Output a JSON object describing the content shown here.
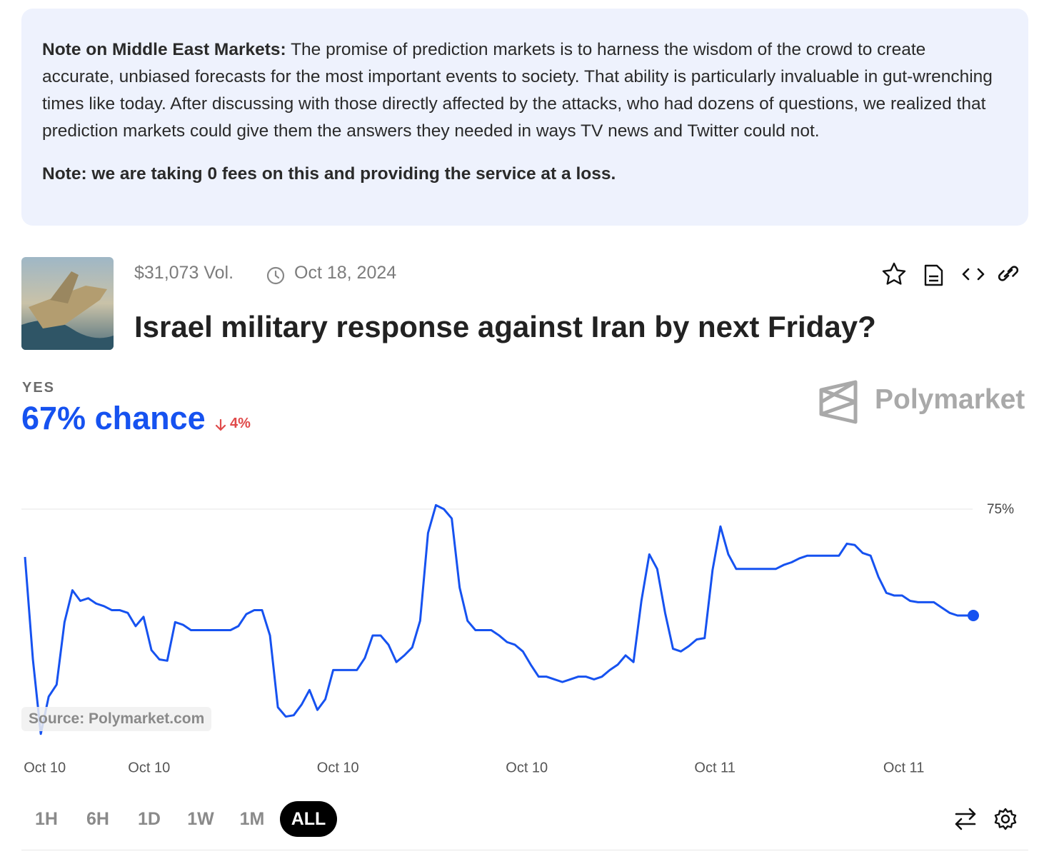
{
  "notice": {
    "heading": "Note on Middle East Markets:",
    "body": "The promise of prediction markets is to harness the wisdom of the crowd to create accurate, unbiased forecasts for the most important events to society. That ability is particularly invaluable in gut-wrenching times like today. After discussing with those directly affected by the attacks, who had dozens of questions, we realized that prediction markets could give them the answers they needed in ways TV news and Twitter could not.",
    "fee_note": "Note: we are taking 0 fees on this and providing the service at a loss."
  },
  "market": {
    "volume": "$31,073 Vol.",
    "end_date": "Oct 18, 2024",
    "title": "Israel military response against Iran by next Friday?",
    "outcome": "YES",
    "chance": "67% chance",
    "change": "4%",
    "brand": "Polymarket",
    "source": "Source: Polymarket.com"
  },
  "chart_data": {
    "type": "line",
    "color": "#1652f0",
    "grid": true,
    "x": [
      0,
      1,
      2,
      3,
      4,
      5,
      6,
      7,
      8,
      9,
      10,
      11,
      12,
      13,
      14,
      15,
      16,
      17,
      18,
      19,
      20,
      21,
      22,
      23,
      24,
      25,
      26,
      27,
      28,
      29,
      30,
      31,
      32,
      33,
      34,
      35,
      36,
      37,
      38,
      39,
      40,
      41,
      42,
      43,
      44,
      45,
      46,
      47,
      48,
      49,
      50,
      51,
      52,
      53,
      54,
      55,
      56,
      57,
      58,
      59,
      60,
      61,
      62,
      63,
      64,
      65,
      66,
      67,
      68,
      69,
      70,
      71,
      72,
      73,
      74,
      75,
      76,
      77,
      78,
      79,
      80,
      81,
      82,
      83,
      84,
      85,
      86,
      87,
      88,
      89,
      90,
      91,
      92,
      93,
      94,
      95,
      96,
      97,
      98,
      99,
      100,
      101,
      102,
      103,
      104,
      105,
      106,
      107,
      108,
      109,
      110,
      111,
      112,
      113,
      114,
      115,
      116,
      117,
      118,
      119,
      120
    ],
    "values": [
      71.4,
      63.7,
      58.1,
      60.9,
      61.8,
      66.5,
      68.9,
      68.1,
      68.3,
      67.9,
      67.7,
      67.4,
      67.4,
      67.2,
      66.2,
      66.9,
      64.4,
      63.7,
      63.6,
      66.5,
      66.3,
      65.9,
      65.9,
      65.9,
      65.9,
      65.9,
      65.9,
      66.2,
      67.1,
      67.4,
      67.4,
      65.5,
      60.1,
      59.4,
      59.5,
      60.3,
      61.4,
      59.9,
      60.7,
      62.9,
      62.9,
      62.9,
      62.9,
      63.8,
      65.5,
      65.5,
      64.8,
      63.5,
      64.0,
      64.6,
      66.6,
      73.2,
      75.3,
      75.0,
      74.3,
      69.1,
      66.6,
      65.9,
      65.9,
      65.9,
      65.5,
      65.0,
      64.8,
      64.3,
      63.3,
      62.4,
      62.4,
      62.2,
      62.0,
      62.2,
      62.4,
      62.4,
      62.2,
      62.4,
      62.9,
      63.3,
      64.0,
      63.5,
      68.1,
      71.6,
      70.5,
      67.2,
      64.5,
      64.3,
      64.7,
      65.2,
      65.3,
      70.4,
      73.7,
      71.6,
      70.5,
      70.5,
      70.5,
      70.5,
      70.5,
      70.5,
      70.8,
      71.0,
      71.3,
      71.5,
      71.5,
      71.5,
      71.5,
      71.5,
      72.4,
      72.3,
      71.7,
      71.5,
      69.9,
      68.7,
      68.5,
      68.5,
      68.1,
      68.0,
      68.0,
      68.0,
      67.6,
      67.2,
      67.0,
      67.0,
      67.0
    ],
    "xlim": [
      0,
      120
    ],
    "xticks": [
      {
        "value": 2.5,
        "label": "Oct 10"
      },
      {
        "value": 15.7,
        "label": "Oct 10"
      },
      {
        "value": 39.6,
        "label": "Oct 10"
      },
      {
        "value": 63.5,
        "label": "Oct 10"
      },
      {
        "value": 87.3,
        "label": "Oct 11"
      },
      {
        "value": 111.2,
        "label": "Oct 11"
      }
    ],
    "ylim": [
      57,
      79
    ],
    "yticks": [
      {
        "value": 75,
        "label": "75%"
      }
    ]
  },
  "controls": {
    "ranges": [
      "1H",
      "6H",
      "1D",
      "1W",
      "1M",
      "ALL"
    ],
    "selected": "ALL"
  }
}
